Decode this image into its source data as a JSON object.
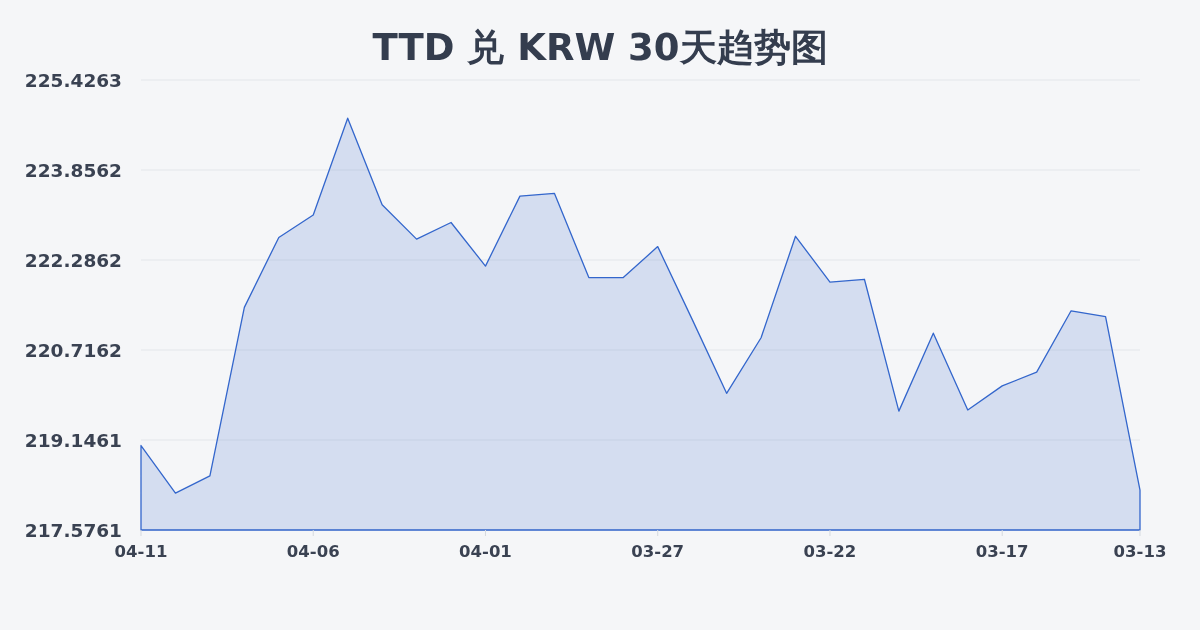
{
  "chart_data": {
    "type": "area",
    "title": "TTD 兑 KRW 30天趋势图",
    "categories": [
      "04-11",
      null,
      null,
      null,
      null,
      "04-06",
      null,
      null,
      null,
      null,
      "04-01",
      null,
      null,
      null,
      null,
      "03-27",
      null,
      null,
      null,
      null,
      "03-22",
      null,
      null,
      null,
      null,
      "03-17",
      null,
      null,
      null,
      "03-13"
    ],
    "values": [
      219.05,
      218.22,
      218.52,
      221.46,
      222.68,
      223.07,
      224.76,
      223.25,
      222.65,
      222.94,
      222.18,
      223.4,
      223.45,
      221.98,
      221.98,
      222.52,
      221.25,
      219.96,
      220.93,
      222.7,
      221.9,
      221.95,
      219.65,
      221.01,
      219.67,
      220.09,
      220.33,
      221.4,
      221.3,
      218.27
    ],
    "color": "#3366cc",
    "ylim": [
      217.5761,
      225.4263
    ],
    "yticks": [
      217.5761,
      219.1461,
      220.7162,
      222.2862,
      223.8562,
      225.4263
    ],
    "grid": "y"
  }
}
